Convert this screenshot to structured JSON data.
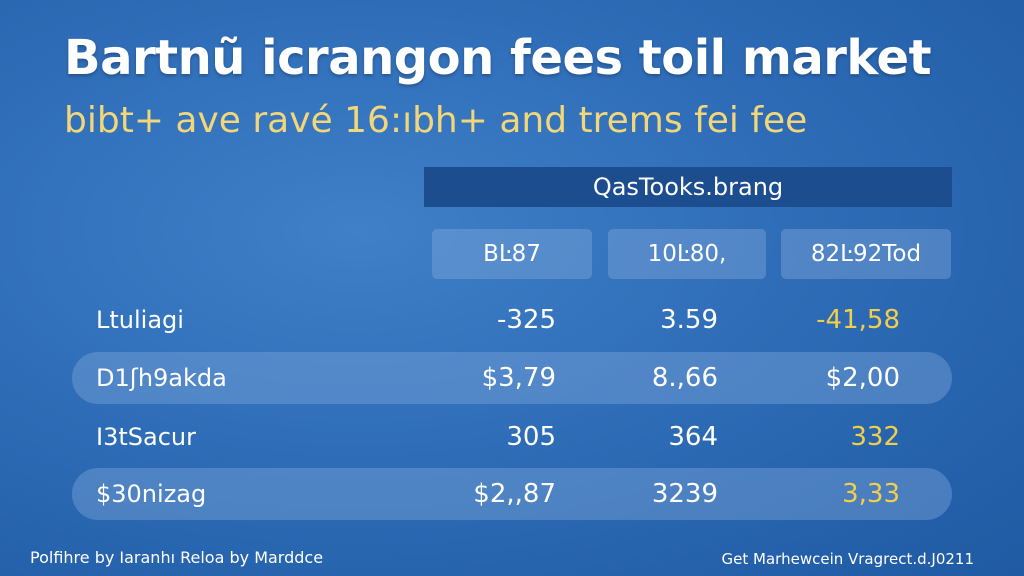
{
  "title": "Bartnũ icrangon fees toil market",
  "subtitle": "bibt+ ave ravé 16:ıbh+ and trems fei fee",
  "table": {
    "header": "QasTooks.brang",
    "columns": [
      "BĿ87",
      "10Ŀ80,",
      "82Ŀ92Tod"
    ],
    "rows": [
      {
        "label": "Ltuliagi",
        "values": [
          "-325",
          "3.59",
          "-41,58"
        ]
      },
      {
        "label": "D1ʃh9akda",
        "values": [
          "$3,79",
          "8.,66",
          "$2,00"
        ]
      },
      {
        "label": "I3tSacur",
        "values": [
          "305",
          "364",
          "332"
        ]
      },
      {
        "label": "$30nizag",
        "values": [
          "$2,,87",
          "3239",
          "3,33"
        ]
      }
    ]
  },
  "footer": {
    "left": "Polfihre by Iaranhı Reloa by Marddce",
    "right": "Get Marhewcein Vragrect.d.J0211"
  },
  "colors": {
    "background": "#2f6db8",
    "subtitle": "#f2d67a",
    "accent_values": "#f2cf4a",
    "header_bar": "#1c4d8e"
  }
}
